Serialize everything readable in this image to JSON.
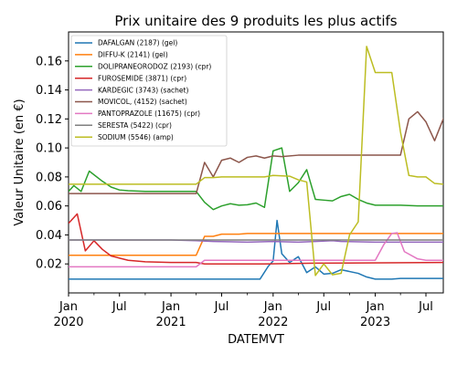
{
  "chart_data": {
    "type": "line",
    "title": "Prix unitaire des 9 produits les plus actifs",
    "xlabel": "DATEMVT",
    "ylabel": "Valeur Unitaire (en €)",
    "xlim": [
      "2020-01-01",
      "2023-09-01"
    ],
    "ylim": [
      0.0,
      0.18
    ],
    "yticks": [
      0.02,
      0.04,
      0.06,
      0.08,
      0.1,
      0.12,
      0.14,
      0.16
    ],
    "ytick_labels": [
      "0.02",
      "0.04",
      "0.06",
      "0.08",
      "0.10",
      "0.12",
      "0.14",
      "0.16"
    ],
    "xticks": [
      {
        "date": "2020-01-01",
        "label": "Jan",
        "sublabel": "2020"
      },
      {
        "date": "2020-07-01",
        "label": "Jul",
        "sublabel": ""
      },
      {
        "date": "2021-01-01",
        "label": "Jan",
        "sublabel": "2021"
      },
      {
        "date": "2021-07-01",
        "label": "Jul",
        "sublabel": ""
      },
      {
        "date": "2022-01-01",
        "label": "Jan",
        "sublabel": "2022"
      },
      {
        "date": "2022-07-01",
        "label": "Jul",
        "sublabel": ""
      },
      {
        "date": "2023-01-01",
        "label": "Jan",
        "sublabel": "2023"
      },
      {
        "date": "2023-07-01",
        "label": "Jul",
        "sublabel": ""
      }
    ],
    "grid": false,
    "legend_position": "upper-left",
    "series": [
      {
        "name": "DAFALGAN (2187) (gel)",
        "color": "#1f77b4",
        "points": [
          [
            "2020-01-01",
            0.0095
          ],
          [
            "2021-01-01",
            0.0095
          ],
          [
            "2021-11-15",
            0.0095
          ],
          [
            "2021-12-15",
            0.0185
          ],
          [
            "2022-01-01",
            0.022
          ],
          [
            "2022-01-15",
            0.05
          ],
          [
            "2022-02-01",
            0.027
          ],
          [
            "2022-03-01",
            0.021
          ],
          [
            "2022-04-01",
            0.025
          ],
          [
            "2022-05-01",
            0.014
          ],
          [
            "2022-06-01",
            0.018
          ],
          [
            "2022-07-01",
            0.013
          ],
          [
            "2022-08-01",
            0.0135
          ],
          [
            "2022-09-01",
            0.016
          ],
          [
            "2022-11-01",
            0.0135
          ],
          [
            "2022-12-01",
            0.011
          ],
          [
            "2023-01-01",
            0.0095
          ],
          [
            "2023-02-01",
            0.0095
          ],
          [
            "2023-03-01",
            0.0095
          ],
          [
            "2023-04-01",
            0.01
          ],
          [
            "2023-09-01",
            0.01
          ]
        ]
      },
      {
        "name": "DIFFU-K (2141) (gel)",
        "color": "#ff7f0e",
        "points": [
          [
            "2020-01-01",
            0.026
          ],
          [
            "2020-10-01",
            0.026
          ],
          [
            "2021-01-01",
            0.026
          ],
          [
            "2021-04-01",
            0.026
          ],
          [
            "2021-05-01",
            0.039
          ],
          [
            "2021-06-01",
            0.039
          ],
          [
            "2021-07-01",
            0.0405
          ],
          [
            "2021-09-01",
            0.0405
          ],
          [
            "2021-10-01",
            0.041
          ],
          [
            "2022-06-01",
            0.041
          ],
          [
            "2023-09-01",
            0.041
          ]
        ]
      },
      {
        "name": "DOLIPRANEORODOZ (2193) (cpr)",
        "color": "#2ca02c",
        "points": [
          [
            "2020-01-01",
            0.07
          ],
          [
            "2020-01-20",
            0.074
          ],
          [
            "2020-02-15",
            0.07
          ],
          [
            "2020-03-15",
            0.084
          ],
          [
            "2020-05-01",
            0.077
          ],
          [
            "2020-06-01",
            0.073
          ],
          [
            "2020-07-01",
            0.071
          ],
          [
            "2020-08-01",
            0.0705
          ],
          [
            "2020-10-01",
            0.07
          ],
          [
            "2021-01-01",
            0.07
          ],
          [
            "2021-04-01",
            0.07
          ],
          [
            "2021-05-01",
            0.0625
          ],
          [
            "2021-06-01",
            0.0575
          ],
          [
            "2021-07-01",
            0.06
          ],
          [
            "2021-08-01",
            0.0615
          ],
          [
            "2021-09-01",
            0.0605
          ],
          [
            "2021-10-01",
            0.0608
          ],
          [
            "2021-11-01",
            0.062
          ],
          [
            "2021-12-01",
            0.059
          ],
          [
            "2022-01-01",
            0.098
          ],
          [
            "2022-02-01",
            0.1
          ],
          [
            "2022-03-01",
            0.07
          ],
          [
            "2022-04-01",
            0.076
          ],
          [
            "2022-05-01",
            0.085
          ],
          [
            "2022-06-01",
            0.0645
          ],
          [
            "2022-07-01",
            0.064
          ],
          [
            "2022-08-01",
            0.0635
          ],
          [
            "2022-09-01",
            0.0665
          ],
          [
            "2022-10-01",
            0.068
          ],
          [
            "2022-11-01",
            0.0645
          ],
          [
            "2022-12-01",
            0.062
          ],
          [
            "2023-01-01",
            0.0605
          ],
          [
            "2023-04-01",
            0.0605
          ],
          [
            "2023-06-01",
            0.06
          ],
          [
            "2023-09-01",
            0.06
          ]
        ]
      },
      {
        "name": "FUROSEMIDE (3871) (cpr)",
        "color": "#d62728",
        "points": [
          [
            "2020-01-01",
            0.048
          ],
          [
            "2020-02-01",
            0.0545
          ],
          [
            "2020-03-01",
            0.029
          ],
          [
            "2020-04-01",
            0.036
          ],
          [
            "2020-05-01",
            0.03
          ],
          [
            "2020-06-01",
            0.0255
          ],
          [
            "2020-07-01",
            0.024
          ],
          [
            "2020-08-01",
            0.0225
          ],
          [
            "2020-10-01",
            0.0215
          ],
          [
            "2021-01-01",
            0.021
          ],
          [
            "2021-04-01",
            0.021
          ],
          [
            "2021-05-01",
            0.02
          ],
          [
            "2021-12-01",
            0.02
          ],
          [
            "2022-06-01",
            0.0205
          ],
          [
            "2023-09-01",
            0.021
          ]
        ]
      },
      {
        "name": "KARDEGIC (3743) (sachet)",
        "color": "#9467bd",
        "points": [
          [
            "2020-01-01",
            0.0365
          ],
          [
            "2020-10-01",
            0.0365
          ],
          [
            "2021-01-01",
            0.0365
          ],
          [
            "2021-04-01",
            0.036
          ],
          [
            "2021-06-01",
            0.0355
          ],
          [
            "2021-10-01",
            0.035
          ],
          [
            "2022-01-01",
            0.0355
          ],
          [
            "2022-04-01",
            0.035
          ],
          [
            "2022-06-01",
            0.0355
          ],
          [
            "2022-08-01",
            0.036
          ],
          [
            "2022-09-01",
            0.0355
          ],
          [
            "2023-01-01",
            0.035
          ],
          [
            "2023-09-01",
            0.035
          ]
        ]
      },
      {
        "name": "MOVICOL, (4152) (sachet)",
        "color": "#8c564b",
        "points": [
          [
            "2020-01-01",
            0.0685
          ],
          [
            "2020-10-01",
            0.0685
          ],
          [
            "2021-01-01",
            0.0685
          ],
          [
            "2021-04-01",
            0.0685
          ],
          [
            "2021-05-01",
            0.09
          ],
          [
            "2021-06-01",
            0.08
          ],
          [
            "2021-07-01",
            0.0915
          ],
          [
            "2021-08-01",
            0.093
          ],
          [
            "2021-09-01",
            0.09
          ],
          [
            "2021-10-01",
            0.0935
          ],
          [
            "2021-11-01",
            0.0945
          ],
          [
            "2021-12-01",
            0.093
          ],
          [
            "2022-01-01",
            0.0945
          ],
          [
            "2022-02-01",
            0.094
          ],
          [
            "2022-04-01",
            0.095
          ],
          [
            "2022-09-01",
            0.095
          ],
          [
            "2023-01-01",
            0.095
          ],
          [
            "2023-04-01",
            0.095
          ],
          [
            "2023-05-01",
            0.12
          ],
          [
            "2023-06-01",
            0.125
          ],
          [
            "2023-07-01",
            0.118
          ],
          [
            "2023-08-01",
            0.105
          ],
          [
            "2023-09-01",
            0.12
          ],
          [
            "2023-10-01",
            0.102
          ]
        ]
      },
      {
        "name": "PANTOPRAZOLE (11675) (cpr)",
        "color": "#e377c2",
        "points": [
          [
            "2020-01-01",
            0.018
          ],
          [
            "2020-10-01",
            0.018
          ],
          [
            "2021-01-01",
            0.018
          ],
          [
            "2021-04-01",
            0.018
          ],
          [
            "2021-05-01",
            0.0225
          ],
          [
            "2021-12-01",
            0.0225
          ],
          [
            "2022-06-01",
            0.0225
          ],
          [
            "2022-12-01",
            0.0225
          ],
          [
            "2023-01-01",
            0.0225
          ],
          [
            "2023-02-01",
            0.0335
          ],
          [
            "2023-03-01",
            0.041
          ],
          [
            "2023-03-20",
            0.0415
          ],
          [
            "2023-04-15",
            0.0285
          ],
          [
            "2023-06-01",
            0.0235
          ],
          [
            "2023-07-01",
            0.0225
          ],
          [
            "2023-09-01",
            0.0225
          ]
        ]
      },
      {
        "name": "SERESTA (5422) (cpr)",
        "color": "#7f7f7f",
        "points": [
          [
            "2020-01-01",
            0.0365
          ],
          [
            "2021-01-01",
            0.0365
          ],
          [
            "2022-01-01",
            0.0365
          ],
          [
            "2023-01-01",
            0.0365
          ],
          [
            "2023-09-01",
            0.0365
          ]
        ]
      },
      {
        "name": "SODIUM (5546) (amp)",
        "color": "#bcbd22",
        "points": [
          [
            "2020-01-01",
            0.075
          ],
          [
            "2020-10-01",
            0.075
          ],
          [
            "2021-01-01",
            0.075
          ],
          [
            "2021-04-01",
            0.075
          ],
          [
            "2021-05-01",
            0.0795
          ],
          [
            "2021-06-01",
            0.0795
          ],
          [
            "2021-07-01",
            0.08
          ],
          [
            "2021-12-01",
            0.08
          ],
          [
            "2022-01-01",
            0.081
          ],
          [
            "2022-03-01",
            0.0805
          ],
          [
            "2022-04-01",
            0.078
          ],
          [
            "2022-05-01",
            0.0765
          ],
          [
            "2022-06-01",
            0.012
          ],
          [
            "2022-07-01",
            0.02
          ],
          [
            "2022-08-01",
            0.0125
          ],
          [
            "2022-09-01",
            0.0135
          ],
          [
            "2022-10-01",
            0.04
          ],
          [
            "2022-11-01",
            0.049
          ],
          [
            "2022-12-01",
            0.17
          ],
          [
            "2023-01-01",
            0.152
          ],
          [
            "2023-02-01",
            0.152
          ],
          [
            "2023-03-01",
            0.152
          ],
          [
            "2023-04-01",
            0.111
          ],
          [
            "2023-05-01",
            0.081
          ],
          [
            "2023-06-01",
            0.08
          ],
          [
            "2023-07-01",
            0.08
          ],
          [
            "2023-08-01",
            0.0755
          ],
          [
            "2023-09-01",
            0.075
          ],
          [
            "2023-10-01",
            0.075
          ]
        ]
      }
    ]
  }
}
